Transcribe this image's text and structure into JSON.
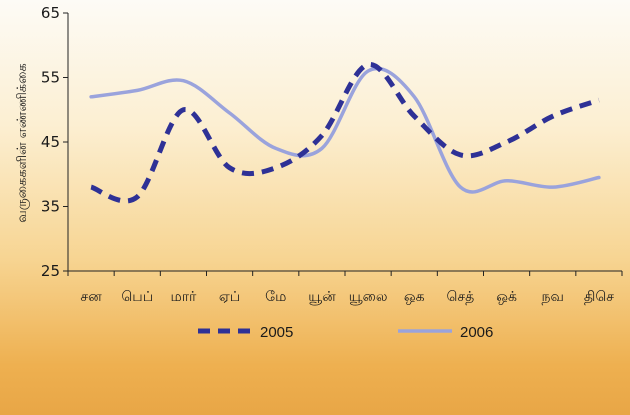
{
  "chart_data": {
    "type": "line",
    "categories": [
      "சன",
      "பெப்",
      "மார்",
      "ஏப்",
      "மே",
      "யூன்",
      "யூலை",
      "ஒக",
      "செத்",
      "ஒக்",
      "நவ",
      "திசெ"
    ],
    "series": [
      {
        "name": "2005",
        "color": "#2e3196",
        "style": "dashed",
        "values": [
          38,
          36.5,
          50,
          41,
          41,
          46,
          57,
          49,
          43,
          45,
          49,
          51.5
        ]
      },
      {
        "name": "2006",
        "color": "#9aa3dc",
        "style": "solid",
        "values": [
          52,
          53,
          54.5,
          49.5,
          44,
          44,
          56,
          52,
          38,
          39,
          38,
          39.5
        ]
      }
    ],
    "ylabel": "வருகைகளின் எண்ணிக்கை",
    "xlabel": "",
    "title": "",
    "ylim": [
      25,
      65
    ],
    "yticks": [
      25,
      35,
      45,
      55,
      65
    ],
    "grid": false,
    "legend": "bottom"
  }
}
